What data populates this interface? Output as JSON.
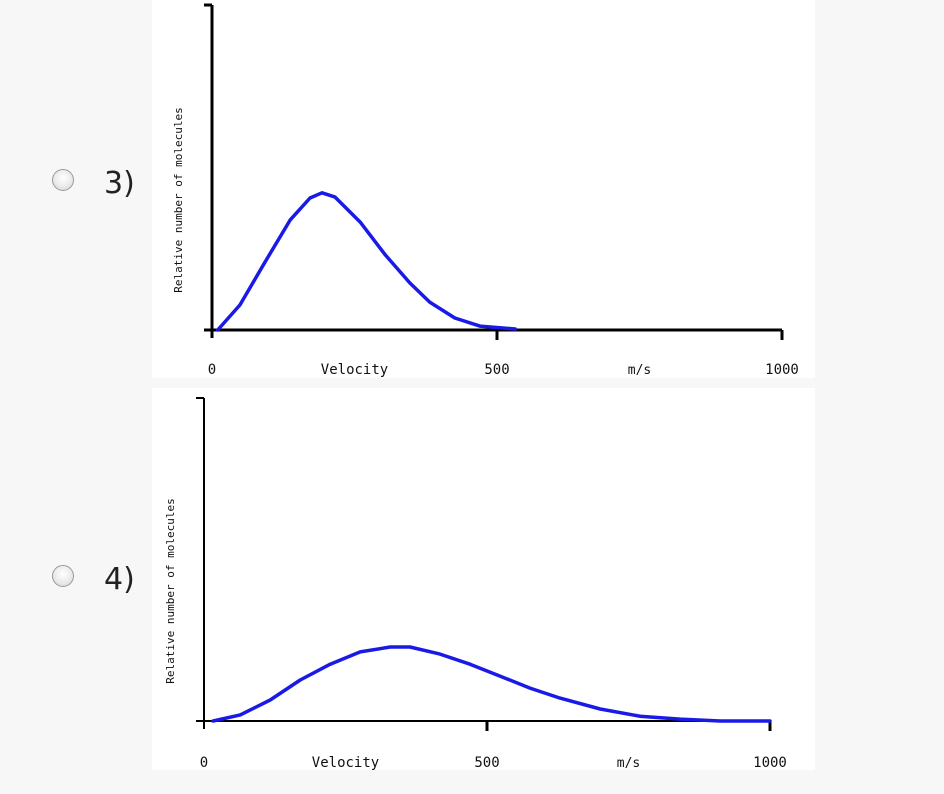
{
  "options": [
    {
      "label": "3)",
      "selected": false
    },
    {
      "label": "4)",
      "selected": false
    }
  ],
  "colors": {
    "curve": "#1a1ae6",
    "axis": "#000000"
  },
  "chart_data": [
    {
      "type": "line",
      "xlabel": "Velocity",
      "xunit": "m/s",
      "ylabel": "Relative number of molecules",
      "xlim": [
        0,
        1000
      ],
      "ylim": [
        0,
        1
      ],
      "xticks": [
        "0",
        "500",
        "1000"
      ],
      "grid": false,
      "x": [
        10,
        49,
        93,
        137,
        172,
        193,
        216,
        260,
        304,
        347,
        382,
        426,
        470,
        532
      ],
      "y": [
        0,
        0.077,
        0.209,
        0.338,
        0.406,
        0.422,
        0.409,
        0.332,
        0.231,
        0.145,
        0.086,
        0.037,
        0.012,
        0.003
      ]
    },
    {
      "type": "line",
      "xlabel": "Velocity",
      "xunit": "m/s",
      "ylabel": "Relative number of molecules",
      "xlim": [
        0,
        1000
      ],
      "ylim": [
        0,
        1
      ],
      "xticks": [
        "0",
        "500",
        "1000"
      ],
      "grid": false,
      "x": [
        16,
        64,
        117,
        170,
        223,
        276,
        329,
        364,
        417,
        470,
        523,
        576,
        629,
        700,
        770,
        841,
        912,
        1000
      ],
      "y": [
        0,
        0.019,
        0.065,
        0.127,
        0.176,
        0.214,
        0.229,
        0.229,
        0.207,
        0.176,
        0.139,
        0.102,
        0.071,
        0.037,
        0.015,
        0.006,
        0,
        0
      ]
    }
  ]
}
